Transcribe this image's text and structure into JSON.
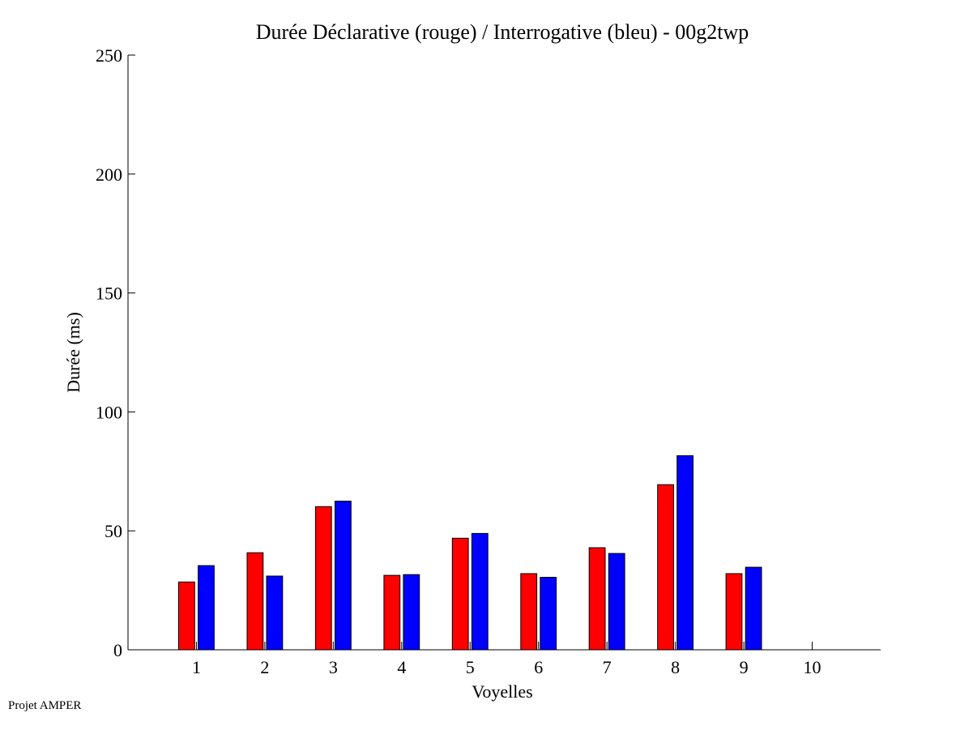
{
  "chart_data": {
    "type": "bar",
    "title": "Durée Déclarative (rouge) / Interrogative (bleu) - 00g2twp",
    "xlabel": "Voyelles",
    "ylabel": "Durée (ms)",
    "categories": [
      "1",
      "2",
      "3",
      "4",
      "5",
      "6",
      "7",
      "8",
      "9",
      "10"
    ],
    "xlim": [
      0,
      11
    ],
    "ylim": [
      0,
      250
    ],
    "yticks": [
      "0",
      "50",
      "100",
      "150",
      "200",
      "250"
    ],
    "grid": false,
    "series": [
      {
        "color": "#ff0000",
        "values": [
          28.5,
          40.8,
          60.2,
          31.3,
          46.9,
          32.0,
          42.9,
          69.4,
          32.0,
          null
        ]
      },
      {
        "color": "#0000ff",
        "values": [
          35.4,
          31.0,
          62.5,
          31.6,
          48.9,
          30.5,
          40.5,
          81.6,
          34.7,
          null
        ]
      }
    ]
  },
  "footer": "Projet AMPER"
}
